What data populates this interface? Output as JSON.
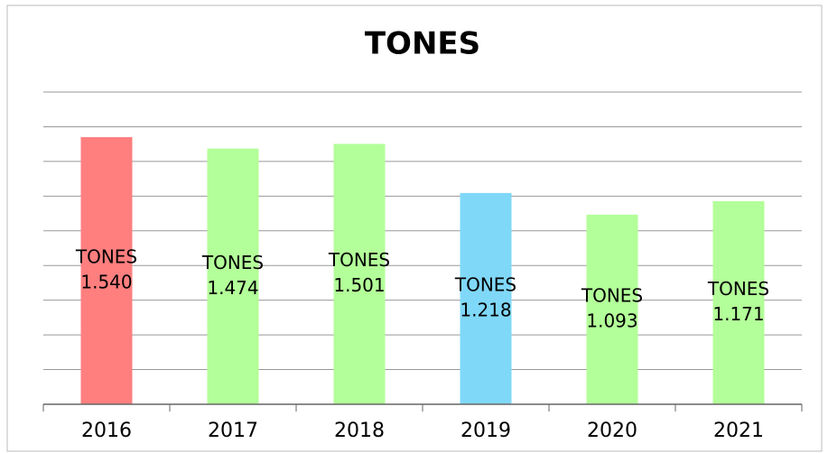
{
  "chart_data": {
    "type": "bar",
    "title": "TONES",
    "categories": [
      "2016",
      "2017",
      "2018",
      "2019",
      "2020",
      "2021"
    ],
    "series": [
      {
        "name": "TONES",
        "colors": [
          "#ff7f7f",
          "#b3ff99",
          "#b3ff99",
          "#80d8f8",
          "#b3ff99",
          "#b3ff99"
        ],
        "values": [
          1.54,
          1.474,
          1.501,
          1.218,
          1.093,
          1.171
        ],
        "value_labels": [
          "1.540",
          "1.474",
          "1.501",
          "1.218",
          "1.093",
          "1.171"
        ]
      }
    ],
    "ylim": [
      0,
      1.8
    ],
    "yticks": [
      0,
      0.2,
      0.4,
      0.6,
      0.8,
      1,
      1.2,
      1.4,
      1.6,
      1.8
    ],
    "grid": true
  }
}
